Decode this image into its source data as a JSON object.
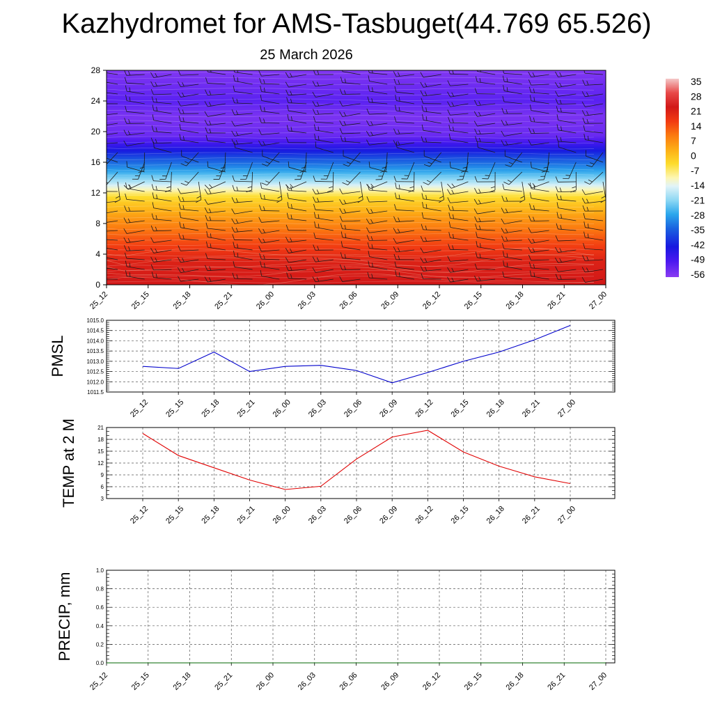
{
  "title": "Kazhydromet for AMS-Tasbuget(44.769 65.526)",
  "subtitle": "25 March 2026",
  "chart_data": [
    {
      "type": "heatmap",
      "name": "vertical-cross-section",
      "x_ticks": [
        "25_12",
        "25_15",
        "25_18",
        "25_21",
        "26_00",
        "26_03",
        "26_06",
        "26_09",
        "26_12",
        "26_15",
        "26_18",
        "26_21",
        "27_00"
      ],
      "y_ticks": [
        0,
        4,
        8,
        12,
        16,
        20,
        24,
        28
      ],
      "ylim": [
        0,
        28
      ],
      "colorbar": {
        "labels": [
          35,
          28,
          21,
          14,
          7,
          0,
          -7,
          -14,
          -21,
          -28,
          -35,
          -42,
          -49,
          -56
        ],
        "stops": [
          {
            "value": 38,
            "color": "#f4c8c8"
          },
          {
            "value": 31,
            "color": "#e84848"
          },
          {
            "value": 24,
            "color": "#d21818"
          },
          {
            "value": 17,
            "color": "#f23a12"
          },
          {
            "value": 10,
            "color": "#fb7a10"
          },
          {
            "value": 3,
            "color": "#fdae16"
          },
          {
            "value": -4,
            "color": "#fddc2c"
          },
          {
            "value": -11,
            "color": "#fdf6b4"
          },
          {
            "value": -15,
            "color": "#e2f4f8"
          },
          {
            "value": -22,
            "color": "#8ed8f4"
          },
          {
            "value": -29,
            "color": "#2aa6ec"
          },
          {
            "value": -36,
            "color": "#1a62e0"
          },
          {
            "value": -45,
            "color": "#1818e0"
          },
          {
            "value": -52,
            "color": "#4a18f0"
          },
          {
            "value": -60,
            "color": "#8a3cf2"
          }
        ]
      },
      "profile": [
        {
          "height": 0,
          "temp": 24
        },
        {
          "height": 3,
          "temp": 22
        },
        {
          "height": 6,
          "temp": 14
        },
        {
          "height": 9,
          "temp": 5
        },
        {
          "height": 11.5,
          "temp": -4
        },
        {
          "height": 12.5,
          "temp": -12
        },
        {
          "height": 13.5,
          "temp": -20
        },
        {
          "height": 15,
          "temp": -30
        },
        {
          "height": 16.5,
          "temp": -38
        },
        {
          "height": 18,
          "temp": -48
        },
        {
          "height": 19.5,
          "temp": -56
        },
        {
          "height": 22,
          "temp": -58
        },
        {
          "height": 24,
          "temp": -54
        },
        {
          "height": 28,
          "temp": -59
        }
      ]
    },
    {
      "type": "line",
      "name": "pmsl",
      "ylabel": "PMSL",
      "x": [
        "25_12",
        "25_15",
        "25_18",
        "25_21",
        "26_00",
        "26_03",
        "26_06",
        "26_09",
        "26_12",
        "26_15",
        "26_18",
        "26_21",
        "27_00"
      ],
      "values": [
        1012.75,
        1012.65,
        1013.45,
        1012.5,
        1012.75,
        1012.8,
        1012.55,
        1011.95,
        1012.45,
        1013.0,
        1013.45,
        1014.05,
        1014.75
      ],
      "ylim": [
        1011.5,
        1015.0
      ],
      "y_ticks": [
        "1011.5",
        "1012.0",
        "1012.5",
        "1013.0",
        "1013.5",
        "1014.0",
        "1014.5",
        "1015.0"
      ],
      "color": "#0000cc"
    },
    {
      "type": "line",
      "name": "temp2m",
      "ylabel": "TEMP at 2 M",
      "x": [
        "25_12",
        "25_15",
        "25_18",
        "25_21",
        "26_00",
        "26_03",
        "26_06",
        "26_09",
        "26_12",
        "26_15",
        "26_18",
        "26_21",
        "27_00"
      ],
      "values": [
        19.5,
        13.9,
        10.8,
        7.7,
        5.3,
        6.1,
        13.0,
        18.6,
        20.3,
        14.8,
        11.2,
        8.5,
        6.8
      ],
      "ylim": [
        3,
        21
      ],
      "y_ticks": [
        "3",
        "6",
        "9",
        "12",
        "15",
        "18",
        "21"
      ],
      "color": "#e00000"
    },
    {
      "type": "line",
      "name": "precip",
      "ylabel": "PRECIP, mm",
      "x": [
        "25_12",
        "25_15",
        "25_18",
        "25_21",
        "26_00",
        "26_03",
        "26_06",
        "26_09",
        "26_12",
        "26_15",
        "26_18",
        "26_21",
        "27_00"
      ],
      "values": [
        0,
        0,
        0,
        0,
        0,
        0,
        0,
        0,
        0,
        0,
        0,
        0,
        0
      ],
      "ylim": [
        0,
        1
      ],
      "y_ticks": [
        "0.0",
        "0.2",
        "0.4",
        "0.6",
        "0.8",
        "1.0"
      ],
      "color": "#006600"
    }
  ]
}
